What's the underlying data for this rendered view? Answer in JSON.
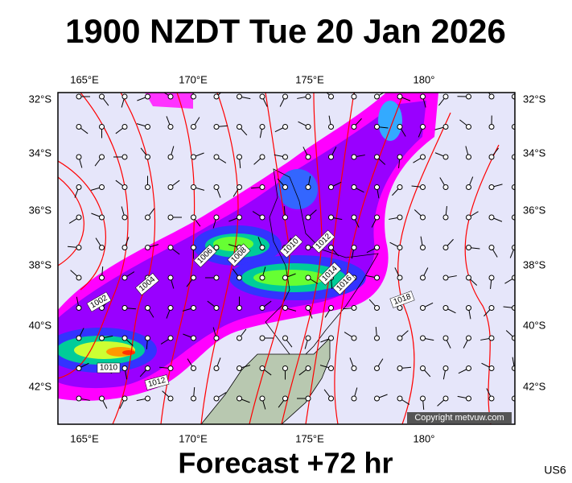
{
  "header": {
    "title": "1900 NZDT Tue 20 Jan 2026"
  },
  "map": {
    "lon_labels": [
      "165°E",
      "170°E",
      "175°E",
      "180°"
    ],
    "lat_labels": [
      "32°S",
      "34°S",
      "36°S",
      "38°S",
      "40°S",
      "42°S"
    ],
    "isobar_labels": [
      "1002",
      "1004",
      "1006",
      "1008",
      "1010",
      "1012",
      "1014",
      "1016",
      "1018",
      "1010",
      "1012"
    ],
    "copyright": "Copyright metvuw.com"
  },
  "footer": {
    "forecast": "Forecast +72 hr",
    "code": "US6"
  }
}
